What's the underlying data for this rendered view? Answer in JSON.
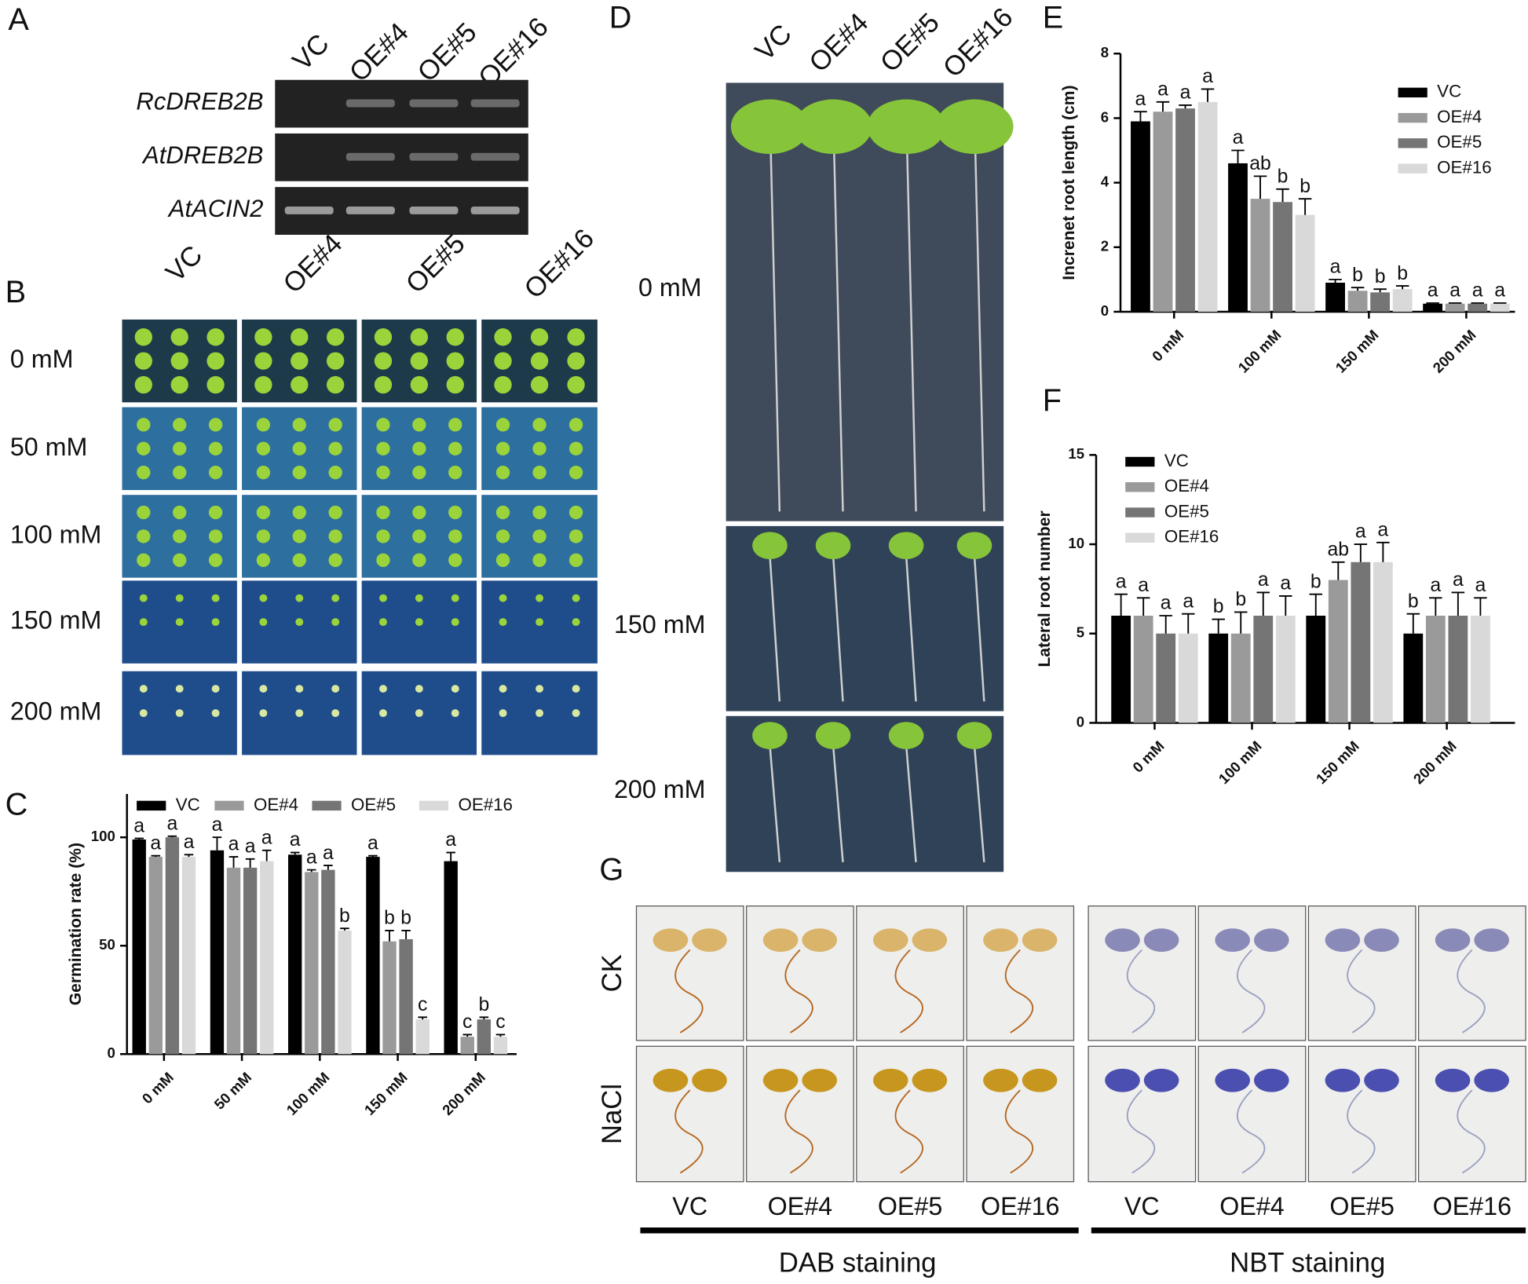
{
  "panel_letters": [
    "A",
    "B",
    "C",
    "D",
    "E",
    "F",
    "G"
  ],
  "gel": {
    "columns": [
      "VC",
      "OE#4",
      "OE#5",
      "OE#16"
    ],
    "genes": [
      "RcDREB2B",
      "AtDREB2B",
      "AtACIN2"
    ]
  },
  "plates_B": {
    "columns": [
      "VC",
      "OE#4",
      "OE#5",
      "OE#16"
    ],
    "rows": [
      "0 mM",
      "50 mM",
      "100 mM",
      "150 mM",
      "200 mM"
    ]
  },
  "plates_D": {
    "columns": [
      "VC",
      "OE#4",
      "OE#5",
      "OE#16"
    ],
    "rows": [
      "0 mM",
      "150 mM",
      "200 mM"
    ]
  },
  "staining_G": {
    "rows": [
      "CK",
      "NaCl"
    ],
    "columns": [
      "VC",
      "OE#4",
      "OE#5",
      "OE#16",
      "VC",
      "OE#4",
      "OE#5",
      "OE#16"
    ],
    "groups": [
      "DAB staining",
      "NBT staining"
    ]
  },
  "chart_data": [
    {
      "type": "bar",
      "y_label": "Germination rate (%)",
      "categories": [
        "0 mM",
        "50 mM",
        "100 mM",
        "150 mM",
        "200 mM"
      ],
      "series": [
        {
          "name": "VC",
          "color": "#000000",
          "values": [
            99,
            94,
            92,
            91,
            89
          ],
          "errors": [
            0.5,
            6,
            1,
            0.5,
            4
          ],
          "letters": [
            "a",
            "a",
            "a",
            "a",
            "a"
          ]
        },
        {
          "name": "OE#4",
          "color": "#9a9a9a",
          "values": [
            91,
            86,
            84,
            52,
            8
          ],
          "errors": [
            0.5,
            5,
            1,
            5,
            1
          ],
          "letters": [
            "a",
            "a",
            "a",
            "b",
            "c"
          ]
        },
        {
          "name": "OE#5",
          "color": "#757575",
          "values": [
            100,
            86,
            85,
            53,
            16
          ],
          "errors": [
            0.5,
            4,
            2,
            4,
            1
          ],
          "letters": [
            "a",
            "a",
            "a",
            "b",
            "b"
          ]
        },
        {
          "name": "OE#16",
          "color": "#d9d9d9",
          "values": [
            91,
            89,
            57,
            16,
            8
          ],
          "errors": [
            1,
            5,
            1,
            1,
            1
          ],
          "letters": [
            "a",
            "a",
            "b",
            "c",
            "c"
          ]
        }
      ],
      "ylim": [
        0,
        120
      ],
      "yticks": [
        0,
        50,
        100
      ],
      "legend": "top"
    },
    {
      "type": "bar",
      "y_label": "Increnet root length (cm)",
      "categories": [
        "0 mM",
        "100 mM",
        "150 mM",
        "200 mM"
      ],
      "series": [
        {
          "name": "VC",
          "color": "#000000",
          "values": [
            5.9,
            4.6,
            0.9,
            0.25
          ],
          "errors": [
            0.3,
            0.4,
            0.1,
            0.02
          ],
          "letters": [
            "a",
            "a",
            "a",
            "a"
          ]
        },
        {
          "name": "OE#4",
          "color": "#9a9a9a",
          "values": [
            6.2,
            3.5,
            0.65,
            0.25
          ],
          "errors": [
            0.3,
            0.7,
            0.1,
            0.02
          ],
          "letters": [
            "a",
            "ab",
            "b",
            "a"
          ]
        },
        {
          "name": "OE#5",
          "color": "#757575",
          "values": [
            6.3,
            3.4,
            0.6,
            0.25
          ],
          "errors": [
            0.1,
            0.4,
            0.1,
            0.02
          ],
          "letters": [
            "a",
            "b",
            "b",
            "a"
          ]
        },
        {
          "name": "OE#16",
          "color": "#d9d9d9",
          "values": [
            6.5,
            3.0,
            0.7,
            0.25
          ],
          "errors": [
            0.4,
            0.5,
            0.1,
            0.02
          ],
          "letters": [
            "a",
            "b",
            "b",
            "a"
          ]
        }
      ],
      "ylim": [
        0,
        8
      ],
      "yticks": [
        0,
        2,
        4,
        6,
        8
      ],
      "legend": "top-right"
    },
    {
      "type": "bar",
      "y_label": "Lateral root number",
      "categories": [
        "0 mM",
        "100 mM",
        "150 mM",
        "200 mM"
      ],
      "series": [
        {
          "name": "VC",
          "color": "#000000",
          "values": [
            6,
            5,
            6,
            5
          ],
          "errors": [
            1.2,
            0.8,
            1.2,
            1.1
          ],
          "letters": [
            "a",
            "b",
            "b",
            "b"
          ]
        },
        {
          "name": "OE#4",
          "color": "#9a9a9a",
          "values": [
            6,
            5,
            8,
            6
          ],
          "errors": [
            1,
            1.2,
            1,
            1
          ],
          "letters": [
            "a",
            "b",
            "ab",
            "a"
          ]
        },
        {
          "name": "OE#5",
          "color": "#757575",
          "values": [
            5,
            6,
            9,
            6
          ],
          "errors": [
            1,
            1.3,
            1,
            1.3
          ],
          "letters": [
            "a",
            "a",
            "a",
            "a"
          ]
        },
        {
          "name": "OE#16",
          "color": "#d9d9d9",
          "values": [
            5,
            6,
            9,
            6
          ],
          "errors": [
            1.1,
            1.1,
            1.1,
            1
          ],
          "letters": [
            "a",
            "a",
            "a",
            "a"
          ]
        }
      ],
      "ylim": [
        0,
        15
      ],
      "yticks": [
        0,
        5,
        10,
        15
      ],
      "legend": "top-left"
    }
  ]
}
